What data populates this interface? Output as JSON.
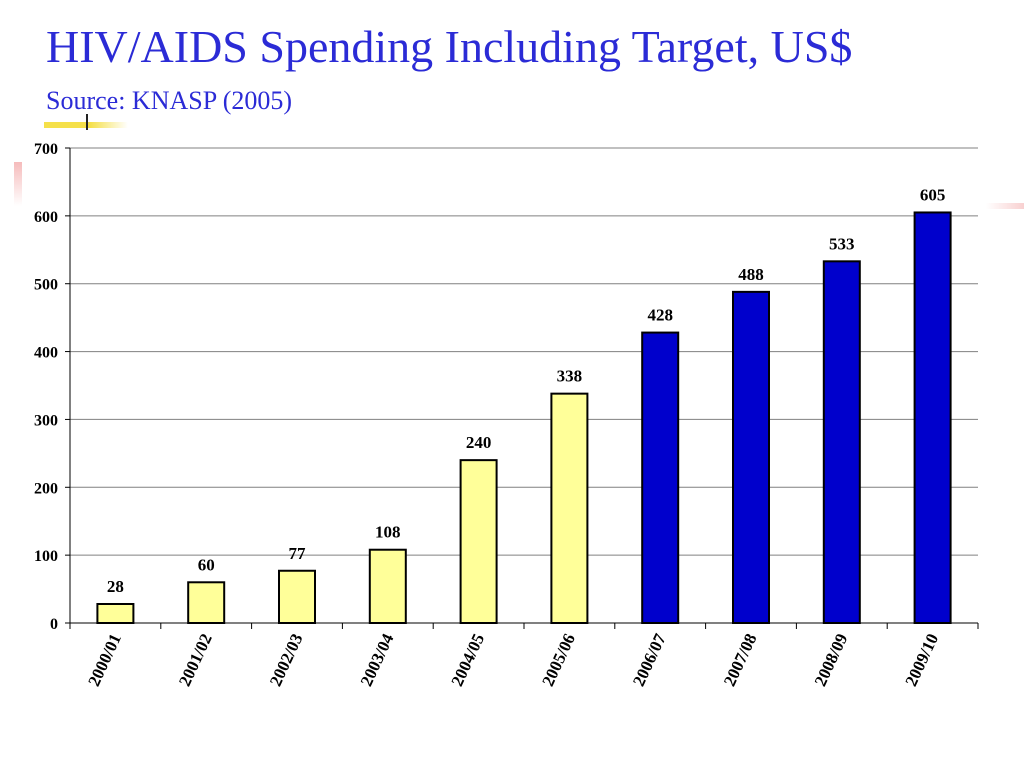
{
  "slide": {
    "title": "HIV/AIDS Spending Including Target, US$",
    "subtitle": "Source: KNASP (2005)"
  },
  "chart_data": {
    "type": "bar",
    "title": "HIV/AIDS Spending Including Target, US$",
    "subtitle": "Source: KNASP (2005)",
    "categories": [
      "2000/01",
      "2001/02",
      "2002/03",
      "2003/04",
      "2004/05",
      "2005/06",
      "2006/07",
      "2007/08",
      "2008/09",
      "2009/10"
    ],
    "values": [
      28,
      60,
      77,
      108,
      240,
      338,
      428,
      488,
      533,
      605
    ],
    "ylim": [
      0,
      700
    ],
    "yticks": [
      0,
      100,
      200,
      300,
      400,
      500,
      600,
      700
    ],
    "grid": true,
    "data_labels": true,
    "colors": {
      "actual": "#ffff99",
      "target": "#0000cc",
      "bar_outline": "#000000",
      "gridline": "#808080",
      "title": "#2b2bd6"
    },
    "bar_color_by_category": [
      "actual",
      "actual",
      "actual",
      "actual",
      "actual",
      "actual",
      "target",
      "target",
      "target",
      "target"
    ]
  }
}
